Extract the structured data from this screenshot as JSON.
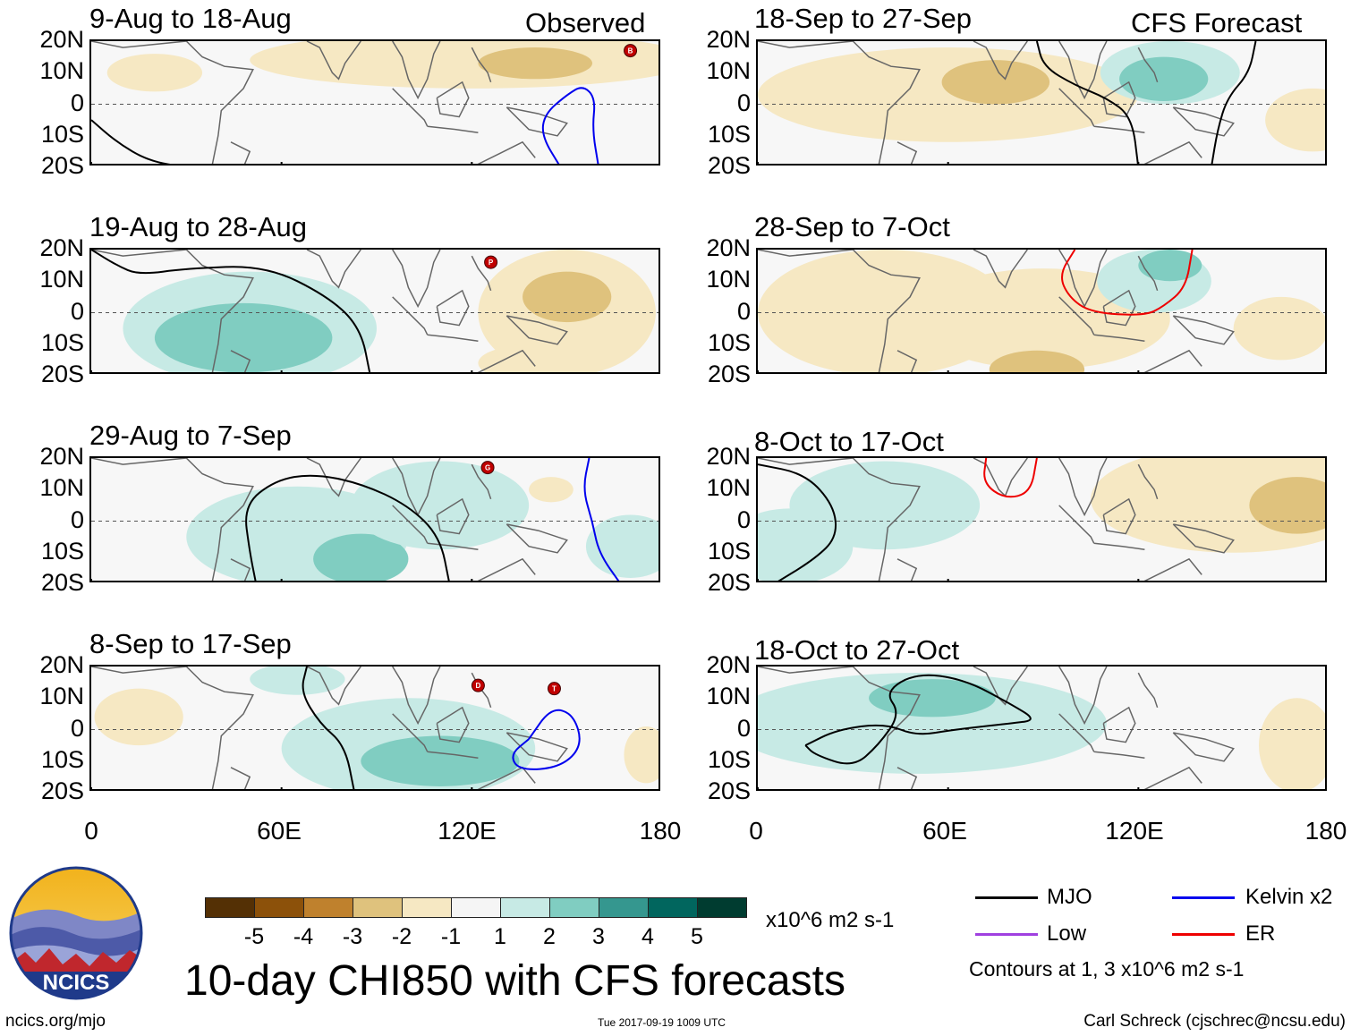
{
  "figure": {
    "title": "10-day CHI850 with CFS forecasts",
    "units": "x10^6 m2 s-1",
    "contour_note": "Contours at 1, 3 x10^6 m2 s-1",
    "url": "ncics.org/mjo",
    "timestamp": "Tue 2017-09-19 1009 UTC",
    "author": "Carl Schreck (cjschrec@ncsu.edu)",
    "logo_text": "NCICS",
    "observed_label": "Observed",
    "forecast_label": "CFS Forecast"
  },
  "axes": {
    "y_ticks": [
      "20N",
      "10N",
      "0",
      "10S",
      "20S"
    ],
    "x_ticks": [
      "0",
      "60E",
      "120E",
      "180"
    ],
    "lat_range": [
      -20,
      20
    ],
    "lon_range": [
      0,
      180
    ]
  },
  "panels": [
    {
      "id": "p1",
      "title": "9-Aug to 18-Aug",
      "kind": "observed"
    },
    {
      "id": "p2",
      "title": "19-Aug to 28-Aug",
      "kind": "observed"
    },
    {
      "id": "p3",
      "title": "29-Aug to 7-Sep",
      "kind": "observed"
    },
    {
      "id": "p4",
      "title": "8-Sep to 17-Sep",
      "kind": "observed"
    },
    {
      "id": "p5",
      "title": "18-Sep to 27-Sep",
      "kind": "forecast"
    },
    {
      "id": "p6",
      "title": "28-Sep to 7-Oct",
      "kind": "forecast"
    },
    {
      "id": "p7",
      "title": "8-Oct to 17-Oct",
      "kind": "forecast"
    },
    {
      "id": "p8",
      "title": "18-Oct to 27-Oct",
      "kind": "forecast"
    }
  ],
  "colorbar": {
    "labels": [
      "-5",
      "-4",
      "-3",
      "-2",
      "-1",
      "1",
      "2",
      "3",
      "4",
      "5"
    ],
    "colors": [
      "#543005",
      "#8c510a",
      "#bf812d",
      "#dfc27d",
      "#f6e8c3",
      "#f5f5f5",
      "#c7eae5",
      "#80cdc1",
      "#35978f",
      "#01665e",
      "#003c30"
    ]
  },
  "legend": [
    {
      "label": "MJO",
      "color": "#000000"
    },
    {
      "label": "Kelvin x2",
      "color": "#0000ee"
    },
    {
      "label": "Low",
      "color": "#a040e0"
    },
    {
      "label": "ER",
      "color": "#ee0000"
    }
  ],
  "storm_markers": [
    {
      "panel": "p1",
      "letter": "B",
      "lon": 170,
      "lat": 17
    },
    {
      "panel": "p2",
      "letter": "P",
      "lon": 126,
      "lat": 16
    },
    {
      "panel": "p3",
      "letter": "G",
      "lon": 125,
      "lat": 17
    },
    {
      "panel": "p4",
      "letter": "D",
      "lon": 122,
      "lat": 14
    },
    {
      "panel": "p4",
      "letter": "T",
      "lon": 146,
      "lat": 13
    }
  ]
}
